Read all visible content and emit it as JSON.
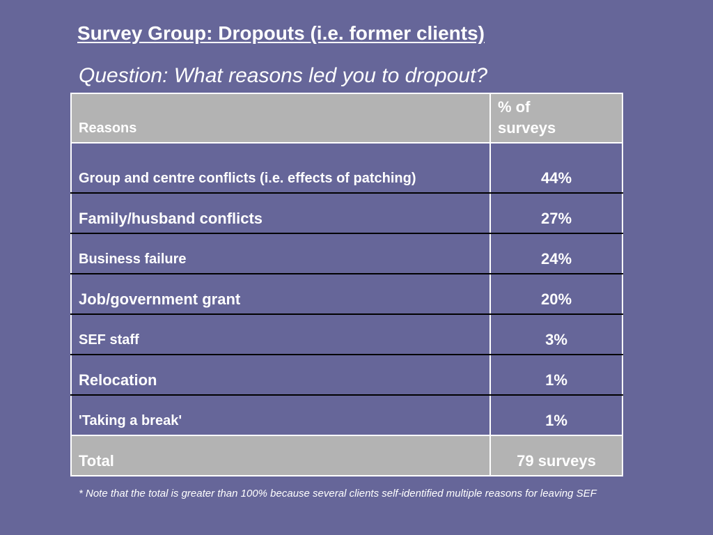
{
  "slide": {
    "title": "Survey Group:  Dropouts (i.e. former clients)",
    "subtitle": "Question:  What reasons led you to dropout?"
  },
  "table": {
    "header": {
      "reason_label": "Reasons",
      "percent_label_line1": "% of",
      "percent_label_line2": "surveys"
    },
    "rows": [
      {
        "reason": "Group and centre conflicts (i.e. effects of patching)",
        "percent": "44%"
      },
      {
        "reason": "Family/husband conflicts",
        "percent": "27%"
      },
      {
        "reason": "Business failure",
        "percent": "24%"
      },
      {
        "reason": "Job/government grant",
        "percent": "20%"
      },
      {
        "reason": "SEF staff",
        "percent": "3%"
      },
      {
        "reason": "Relocation",
        "percent": "1%"
      },
      {
        "reason": "'Taking a break'",
        "percent": "1%"
      }
    ],
    "total": {
      "label": "Total",
      "value": "79 surveys"
    }
  },
  "footnote": "* Note that the total is greater than 100% because several clients self-identified multiple reasons for leaving SEF",
  "colors": {
    "background": "#666699",
    "header_fill": "#b3b3b3",
    "text": "#ffffff"
  }
}
